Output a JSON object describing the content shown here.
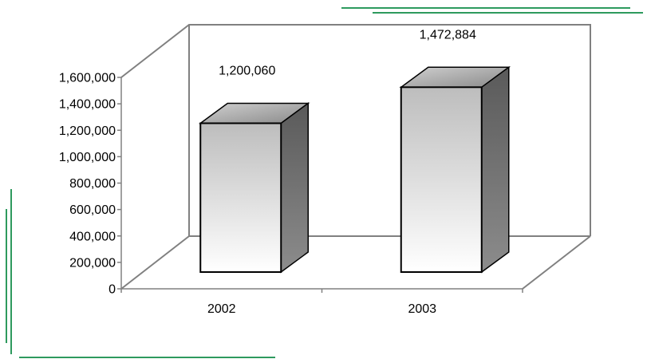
{
  "chart_data": {
    "type": "bar",
    "style": "3d-column",
    "title": "",
    "xlabel": "",
    "ylabel": "",
    "categories": [
      "2002",
      "2003"
    ],
    "values": [
      1200060,
      1472884
    ],
    "data_labels": [
      "1,200,060",
      "1,472,884"
    ],
    "ylim": [
      0,
      1600000
    ],
    "yticks": [
      0,
      200000,
      400000,
      600000,
      800000,
      1000000,
      1200000,
      1400000,
      1600000
    ],
    "ytick_labels": [
      "0",
      "200,000",
      "400,000",
      "600,000",
      "800,000",
      "1,000,000",
      "1,200,000",
      "1,400,000",
      "1,600,000"
    ],
    "grid": false,
    "legend": "none"
  },
  "colors": {
    "decor_line": "#2e9a5e",
    "axis": "#808080",
    "bar_front_light": "#ffffff",
    "bar_front_dark": "#bdbdbd",
    "bar_top": "#9a9a9a",
    "bar_side": "#6f6f6f",
    "bar_outline": "#000000"
  }
}
